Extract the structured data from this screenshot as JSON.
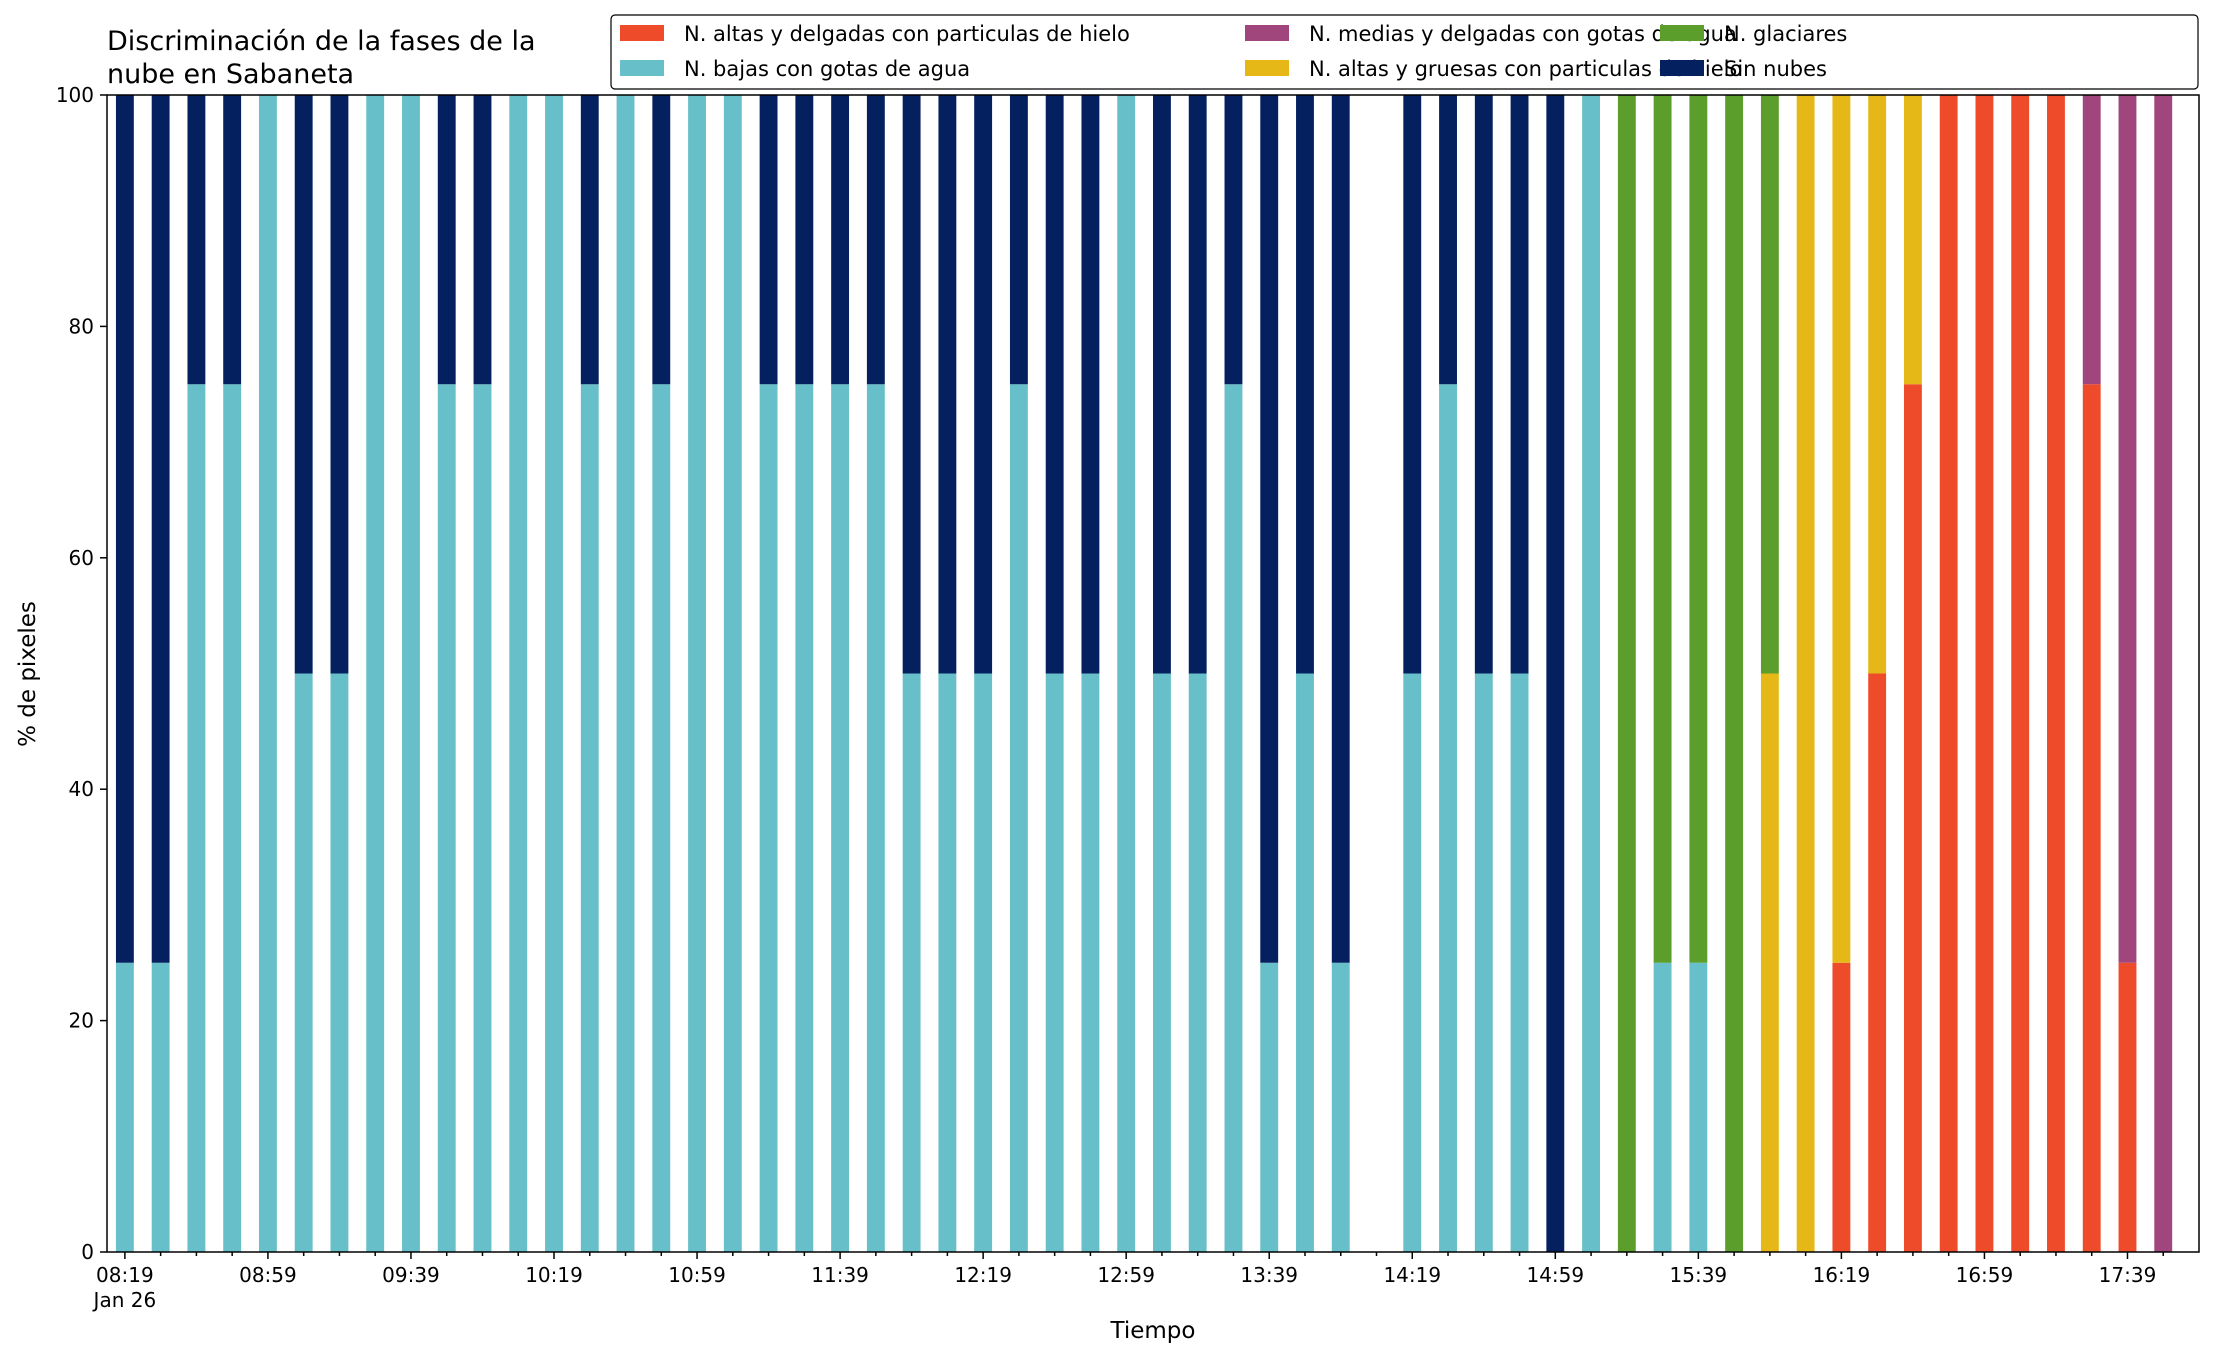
{
  "chart_data": {
    "type": "bar",
    "stacked": true,
    "title_lines": [
      "Discriminación de la fases de la",
      "nube en Sabaneta"
    ],
    "xlabel": "Tiempo",
    "ylabel": "% de pixeles",
    "ylim": [
      0,
      100
    ],
    "yticks": [
      0,
      20,
      40,
      60,
      80,
      100
    ],
    "grid": false,
    "legend_position": "top-right",
    "x": [
      "08:19",
      "08:29",
      "08:39",
      "08:49",
      "08:59",
      "09:09",
      "09:19",
      "09:29",
      "09:39",
      "09:49",
      "09:59",
      "10:09",
      "10:19",
      "10:29",
      "10:39",
      "10:49",
      "10:59",
      "11:09",
      "11:19",
      "11:29",
      "11:39",
      "11:49",
      "11:59",
      "12:09",
      "12:19",
      "12:29",
      "12:39",
      "12:49",
      "12:59",
      "13:09",
      "13:19",
      "13:29",
      "13:39",
      "13:49",
      "13:59",
      "14:09",
      "14:19",
      "14:29",
      "14:39",
      "14:49",
      "14:59",
      "15:09",
      "15:19",
      "15:29",
      "15:39",
      "15:49",
      "15:59",
      "16:09",
      "16:19",
      "16:29",
      "16:39",
      "16:49",
      "16:59",
      "17:09",
      "17:19",
      "17:29",
      "17:39",
      "17:49"
    ],
    "x_tick_labels": [
      {
        "index": 0,
        "label": "08:19",
        "sublabel": "Jan 26"
      },
      {
        "index": 4,
        "label": "08:59"
      },
      {
        "index": 8,
        "label": "09:39"
      },
      {
        "index": 12,
        "label": "10:19"
      },
      {
        "index": 16,
        "label": "10:59"
      },
      {
        "index": 20,
        "label": "11:39"
      },
      {
        "index": 24,
        "label": "12:19"
      },
      {
        "index": 28,
        "label": "12:59"
      },
      {
        "index": 32,
        "label": "13:39"
      },
      {
        "index": 36,
        "label": "14:19"
      },
      {
        "index": 40,
        "label": "14:59"
      },
      {
        "index": 44,
        "label": "15:39"
      },
      {
        "index": 48,
        "label": "16:19"
      },
      {
        "index": 52,
        "label": "16:59"
      },
      {
        "index": 56,
        "label": "17:39"
      }
    ],
    "series": [
      {
        "name": "N. altas y delgadas con particulas de hielo",
        "color": "#ee4b2b",
        "values": [
          0,
          0,
          0,
          0,
          0,
          0,
          0,
          0,
          0,
          0,
          0,
          0,
          0,
          0,
          0,
          0,
          0,
          0,
          0,
          0,
          0,
          0,
          0,
          0,
          0,
          0,
          0,
          0,
          0,
          0,
          0,
          0,
          0,
          0,
          0,
          0,
          0,
          0,
          0,
          0,
          0,
          0,
          0,
          0,
          0,
          0,
          0,
          0,
          25,
          50,
          75,
          100,
          100,
          100,
          100,
          75,
          25,
          0
        ]
      },
      {
        "name": "N. altas y gruesas con particulas de hielo",
        "color": "#e5b817",
        "values": [
          0,
          0,
          0,
          0,
          0,
          0,
          0,
          0,
          0,
          0,
          0,
          0,
          0,
          0,
          0,
          0,
          0,
          0,
          0,
          0,
          0,
          0,
          0,
          0,
          0,
          0,
          0,
          0,
          0,
          0,
          0,
          0,
          0,
          0,
          0,
          0,
          0,
          0,
          0,
          0,
          0,
          0,
          0,
          0,
          0,
          0,
          50,
          100,
          75,
          50,
          25,
          0,
          0,
          0,
          0,
          0,
          0,
          0
        ]
      },
      {
        "name": "N. bajas con gotas de agua",
        "color": "#66bfc9",
        "values": [
          25,
          25,
          75,
          75,
          100,
          50,
          50,
          100,
          100,
          75,
          75,
          100,
          100,
          75,
          100,
          75,
          100,
          100,
          75,
          75,
          75,
          75,
          50,
          50,
          50,
          75,
          50,
          50,
          100,
          50,
          50,
          75,
          25,
          50,
          25,
          0,
          50,
          75,
          50,
          50,
          0,
          100,
          0,
          25,
          25,
          0,
          0,
          0,
          0,
          0,
          0,
          0,
          0,
          0,
          0,
          0,
          0,
          0
        ]
      },
      {
        "name": "N. glaciares",
        "color": "#5c9e2c",
        "values": [
          0,
          0,
          0,
          0,
          0,
          0,
          0,
          0,
          0,
          0,
          0,
          0,
          0,
          0,
          0,
          0,
          0,
          0,
          0,
          0,
          0,
          0,
          0,
          0,
          0,
          0,
          0,
          0,
          0,
          0,
          0,
          0,
          0,
          0,
          0,
          0,
          0,
          0,
          0,
          0,
          0,
          0,
          100,
          75,
          75,
          100,
          50,
          0,
          0,
          0,
          0,
          0,
          0,
          0,
          0,
          0,
          0,
          0
        ]
      },
      {
        "name": "N. medias y delgadas con gotas de agua",
        "color": "#a0467c",
        "values": [
          0,
          0,
          0,
          0,
          0,
          0,
          0,
          0,
          0,
          0,
          0,
          0,
          0,
          0,
          0,
          0,
          0,
          0,
          0,
          0,
          0,
          0,
          0,
          0,
          0,
          0,
          0,
          0,
          0,
          0,
          0,
          0,
          0,
          0,
          0,
          0,
          0,
          0,
          0,
          0,
          0,
          0,
          0,
          0,
          0,
          0,
          0,
          0,
          0,
          0,
          0,
          0,
          0,
          0,
          0,
          25,
          75,
          100
        ]
      },
      {
        "name": "Sin nubes",
        "color": "#04205f",
        "values": [
          75,
          75,
          25,
          25,
          0,
          50,
          50,
          0,
          0,
          25,
          25,
          0,
          0,
          25,
          0,
          25,
          0,
          0,
          25,
          25,
          25,
          25,
          50,
          50,
          50,
          25,
          50,
          50,
          0,
          50,
          50,
          25,
          75,
          50,
          75,
          0,
          50,
          25,
          50,
          50,
          100,
          0,
          0,
          0,
          0,
          0,
          0,
          0,
          0,
          0,
          0,
          0,
          0,
          0,
          0,
          0,
          0,
          0
        ]
      }
    ],
    "legend_order": [
      0,
      2,
      4,
      1,
      3,
      5
    ]
  }
}
